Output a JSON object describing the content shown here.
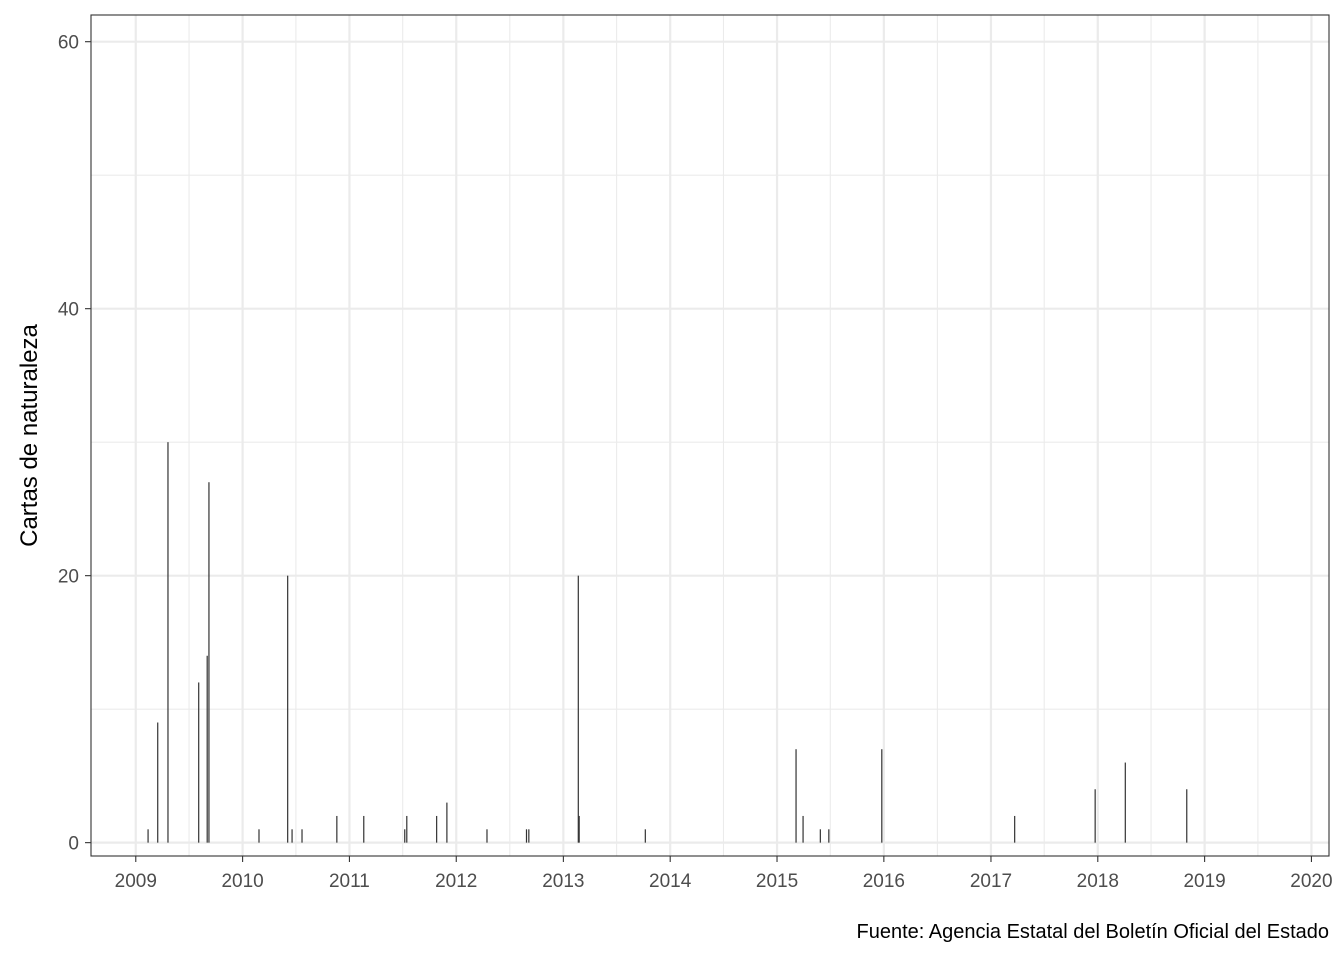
{
  "chart_data": {
    "type": "bar",
    "ylabel": "Cartas de naturaleza",
    "xlabel": "",
    "caption": "Fuente: Agencia Estatal del Boletín Oficial del Estado",
    "x_axis": "date",
    "xlim": [
      "2008-08-01",
      "2020-03-01"
    ],
    "ylim": [
      -1,
      62
    ],
    "y_ticks": [
      0,
      20,
      40,
      60
    ],
    "y_tick_labels": [
      "0",
      "20",
      "40",
      "60"
    ],
    "x_ticks": [
      "2009-01-01",
      "2010-01-01",
      "2011-01-01",
      "2012-01-01",
      "2013-01-01",
      "2014-01-01",
      "2015-01-01",
      "2016-01-01",
      "2017-01-01",
      "2018-01-01",
      "2019-01-01",
      "2020-01-01"
    ],
    "x_tick_labels": [
      "2009",
      "2010",
      "2011",
      "2012",
      "2013",
      "2014",
      "2015",
      "2016",
      "2017",
      "2018",
      "2019",
      "2020"
    ],
    "grid": true,
    "bar_color": "#333333",
    "points": [
      {
        "x": "2009-02-12",
        "y": 1
      },
      {
        "x": "2009-03-17",
        "y": 9
      },
      {
        "x": "2009-04-21",
        "y": 30
      },
      {
        "x": "2009-08-04",
        "y": 12
      },
      {
        "x": "2009-09-02",
        "y": 14
      },
      {
        "x": "2009-09-08",
        "y": 27
      },
      {
        "x": "2010-02-26",
        "y": 1
      },
      {
        "x": "2010-06-04",
        "y": 20
      },
      {
        "x": "2010-06-19",
        "y": 1
      },
      {
        "x": "2010-07-23",
        "y": 1
      },
      {
        "x": "2010-11-19",
        "y": 2
      },
      {
        "x": "2011-02-19",
        "y": 2
      },
      {
        "x": "2011-07-09",
        "y": 1
      },
      {
        "x": "2011-07-16",
        "y": 2
      },
      {
        "x": "2011-10-26",
        "y": 2
      },
      {
        "x": "2011-11-30",
        "y": 3
      },
      {
        "x": "2012-04-15",
        "y": 1
      },
      {
        "x": "2012-08-28",
        "y": 1
      },
      {
        "x": "2012-09-05",
        "y": 1
      },
      {
        "x": "2013-02-21",
        "y": 20
      },
      {
        "x": "2013-02-24",
        "y": 2
      },
      {
        "x": "2013-10-08",
        "y": 1
      },
      {
        "x": "2015-03-07",
        "y": 7
      },
      {
        "x": "2015-03-31",
        "y": 2
      },
      {
        "x": "2015-05-29",
        "y": 1
      },
      {
        "x": "2015-06-27",
        "y": 1
      },
      {
        "x": "2015-12-25",
        "y": 7
      },
      {
        "x": "2017-03-23",
        "y": 2
      },
      {
        "x": "2017-12-23",
        "y": 4
      },
      {
        "x": "2018-04-05",
        "y": 6
      },
      {
        "x": "2018-11-01",
        "y": 4
      }
    ]
  }
}
